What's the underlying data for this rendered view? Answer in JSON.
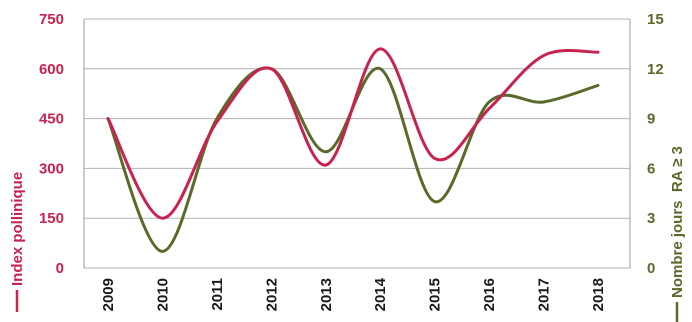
{
  "chart_data": {
    "type": "line",
    "categories": [
      "2009",
      "2010",
      "2011",
      "2012",
      "2013",
      "2014",
      "2015",
      "2016",
      "2017",
      "2018"
    ],
    "series": [
      {
        "name": "Index pollinique",
        "axis": "left",
        "color": "#c8234f",
        "values": [
          450,
          150,
          440,
          600,
          310,
          660,
          330,
          480,
          640,
          650
        ]
      },
      {
        "name": "Nombre jours  RA ≥ 3",
        "axis": "right",
        "color": "#5a6a2a",
        "values": [
          9,
          1,
          9,
          12,
          7,
          12,
          4,
          10,
          10,
          11
        ]
      }
    ],
    "left_axis": {
      "label": "Index pollinique",
      "ylim": [
        0,
        750
      ],
      "ticks": [
        "0",
        "150",
        "300",
        "450",
        "600",
        "750"
      ],
      "color": "#c8234f"
    },
    "right_axis": {
      "label": "Nombre jours  RA ≥ 3",
      "ylim": [
        0,
        15
      ],
      "ticks": [
        "0",
        "3",
        "6",
        "9",
        "12",
        "15"
      ],
      "color": "#5a6a2a"
    },
    "grid": true,
    "gridColor": "#b3b3b3"
  }
}
